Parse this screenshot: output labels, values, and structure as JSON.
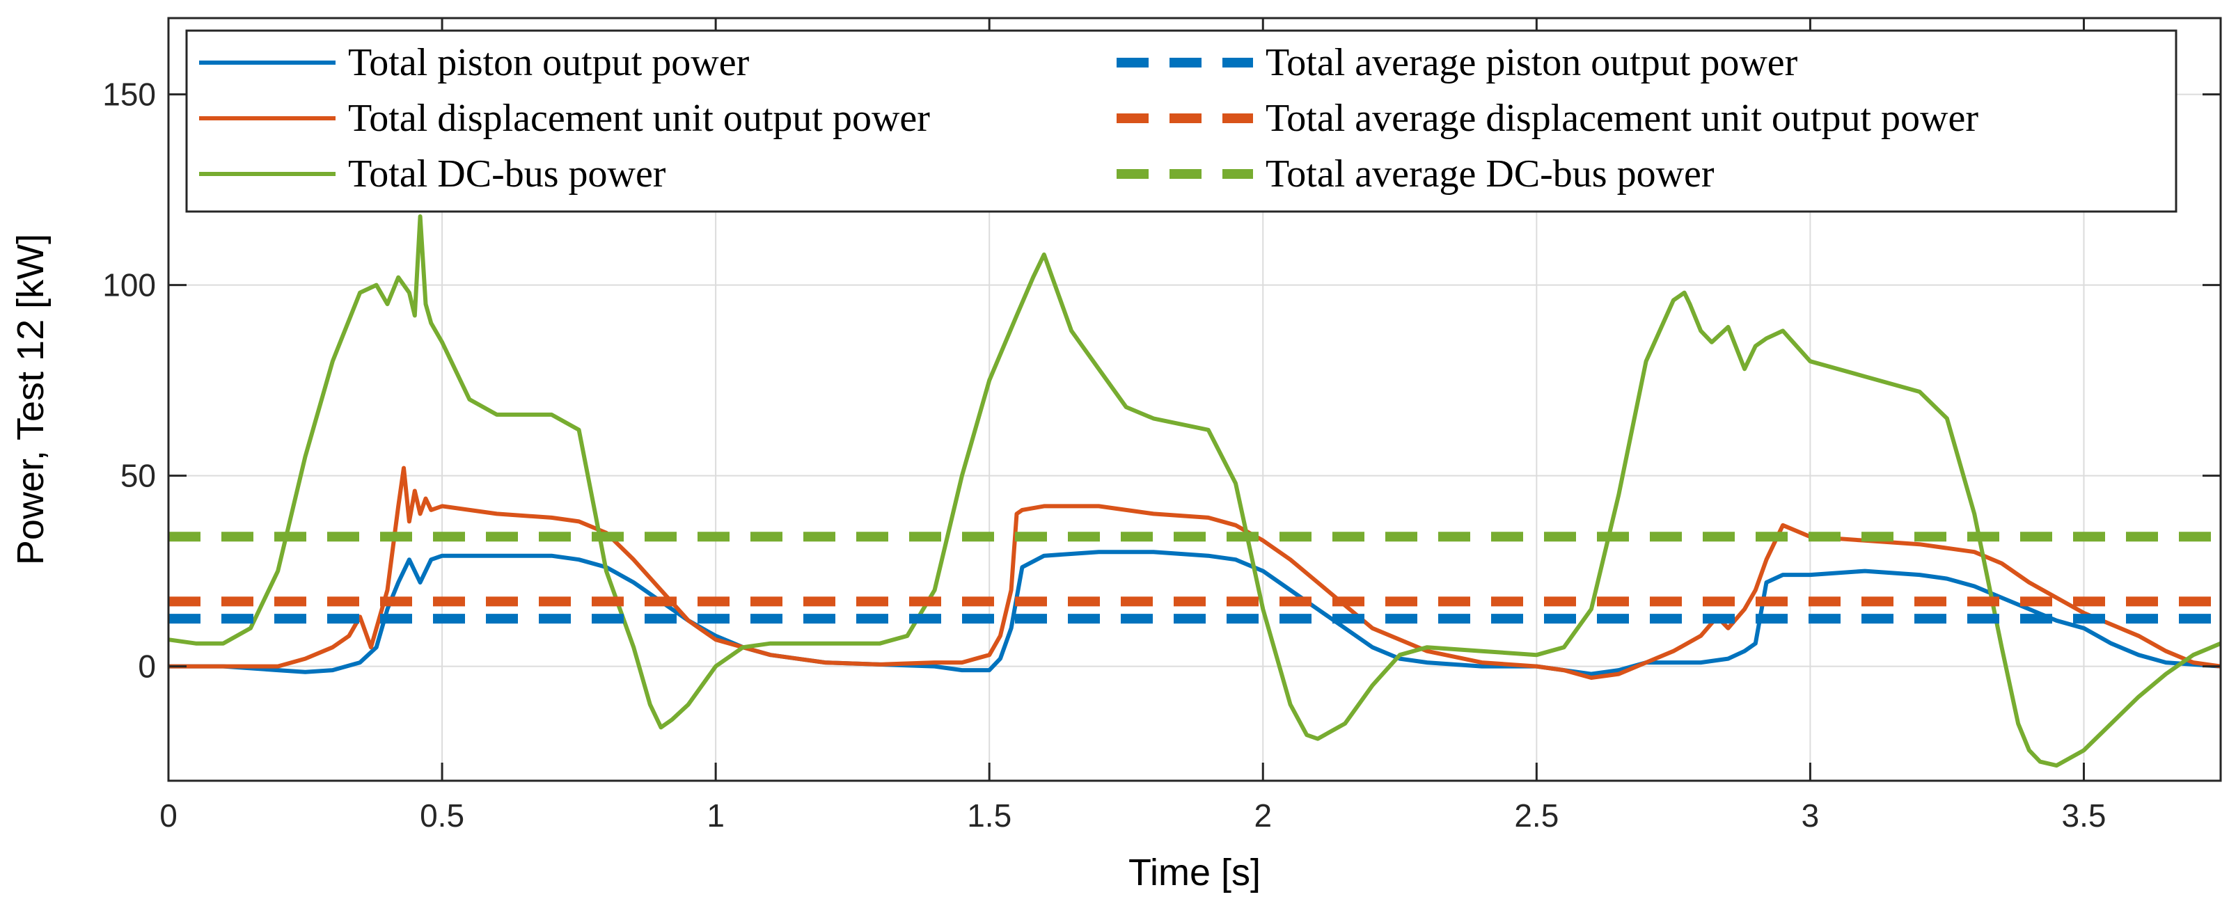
{
  "chart_data": {
    "type": "line",
    "title": "",
    "xlabel": "Time [s]",
    "ylabel": "Power, Test 12 [kW]",
    "xlim": [
      0,
      3.75
    ],
    "ylim": [
      -30,
      170
    ],
    "xticks": [
      0,
      0.5,
      1,
      1.5,
      2,
      2.5,
      3,
      3.5
    ],
    "xtick_labels": [
      "0",
      "0.5",
      "1",
      "1.5",
      "2",
      "2.5",
      "3",
      "3.5"
    ],
    "yticks": [
      0,
      50,
      100,
      150
    ],
    "ytick_labels": [
      "0",
      "50",
      "100",
      "150"
    ],
    "grid": true,
    "legend_position": "top",
    "series": [
      {
        "name": "Total piston output power",
        "style": "solid",
        "color": "#0072BD",
        "x": [
          0,
          0.1,
          0.2,
          0.25,
          0.3,
          0.35,
          0.38,
          0.4,
          0.42,
          0.44,
          0.46,
          0.48,
          0.5,
          0.6,
          0.7,
          0.75,
          0.8,
          0.85,
          0.9,
          0.95,
          1.0,
          1.05,
          1.1,
          1.2,
          1.3,
          1.4,
          1.45,
          1.5,
          1.52,
          1.54,
          1.56,
          1.6,
          1.7,
          1.8,
          1.9,
          1.95,
          2.0,
          2.05,
          2.1,
          2.15,
          2.2,
          2.25,
          2.3,
          2.4,
          2.5,
          2.55,
          2.6,
          2.65,
          2.7,
          2.75,
          2.8,
          2.85,
          2.88,
          2.9,
          2.92,
          2.95,
          3.0,
          3.1,
          3.2,
          3.25,
          3.3,
          3.35,
          3.4,
          3.45,
          3.5,
          3.55,
          3.6,
          3.65,
          3.7,
          3.75
        ],
        "values": [
          0,
          0,
          -1,
          -1.5,
          -1,
          1,
          5,
          15,
          22,
          28,
          22,
          28,
          29,
          29,
          29,
          28,
          26,
          22,
          17,
          12,
          8,
          5,
          3,
          1,
          0.5,
          0,
          -1,
          -1,
          2,
          10,
          26,
          29,
          30,
          30,
          29,
          28,
          25,
          20,
          15,
          10,
          5,
          2,
          1,
          0,
          0,
          -1,
          -2,
          -1,
          1,
          1,
          1,
          2,
          4,
          6,
          22,
          24,
          24,
          25,
          24,
          23,
          21,
          18,
          15,
          12,
          10,
          6,
          3,
          1,
          0.5,
          0
        ]
      },
      {
        "name": "Total displacement unit output power",
        "style": "solid",
        "color": "#D95319",
        "x": [
          0,
          0.1,
          0.2,
          0.25,
          0.3,
          0.33,
          0.35,
          0.37,
          0.4,
          0.42,
          0.43,
          0.44,
          0.45,
          0.46,
          0.47,
          0.48,
          0.5,
          0.6,
          0.7,
          0.75,
          0.8,
          0.85,
          0.9,
          0.95,
          1.0,
          1.1,
          1.2,
          1.3,
          1.4,
          1.45,
          1.5,
          1.52,
          1.54,
          1.55,
          1.56,
          1.6,
          1.7,
          1.8,
          1.9,
          1.95,
          2.0,
          2.05,
          2.1,
          2.15,
          2.2,
          2.3,
          2.4,
          2.5,
          2.55,
          2.6,
          2.65,
          2.7,
          2.75,
          2.8,
          2.83,
          2.85,
          2.88,
          2.9,
          2.92,
          2.95,
          3.0,
          3.1,
          3.2,
          3.25,
          3.3,
          3.35,
          3.4,
          3.5,
          3.6,
          3.65,
          3.7,
          3.75
        ],
        "values": [
          0,
          0,
          0,
          2,
          5,
          8,
          13,
          5,
          20,
          42,
          52,
          38,
          46,
          40,
          44,
          41,
          42,
          40,
          39,
          38,
          35,
          28,
          20,
          12,
          7,
          3,
          1,
          0.5,
          1,
          1,
          3,
          8,
          20,
          40,
          41,
          42,
          42,
          40,
          39,
          37,
          33,
          28,
          22,
          16,
          10,
          4,
          1,
          0,
          -1,
          -3,
          -2,
          1,
          4,
          8,
          13,
          10,
          15,
          20,
          28,
          37,
          34,
          33,
          32,
          31,
          30,
          27,
          22,
          14,
          8,
          4,
          1,
          0
        ]
      },
      {
        "name": "Total DC-bus power",
        "style": "solid",
        "color": "#77AC30",
        "x": [
          0,
          0.05,
          0.1,
          0.15,
          0.2,
          0.25,
          0.3,
          0.35,
          0.38,
          0.4,
          0.42,
          0.44,
          0.45,
          0.46,
          0.47,
          0.48,
          0.5,
          0.55,
          0.6,
          0.7,
          0.75,
          0.78,
          0.8,
          0.85,
          0.88,
          0.9,
          0.92,
          0.95,
          1.0,
          1.05,
          1.1,
          1.2,
          1.3,
          1.35,
          1.4,
          1.45,
          1.5,
          1.55,
          1.58,
          1.6,
          1.62,
          1.65,
          1.7,
          1.75,
          1.8,
          1.9,
          1.95,
          2.0,
          2.05,
          2.08,
          2.1,
          2.15,
          2.2,
          2.25,
          2.3,
          2.4,
          2.5,
          2.55,
          2.6,
          2.65,
          2.7,
          2.75,
          2.77,
          2.78,
          2.8,
          2.82,
          2.85,
          2.88,
          2.9,
          2.92,
          2.95,
          3.0,
          3.1,
          3.2,
          3.25,
          3.3,
          3.35,
          3.38,
          3.4,
          3.42,
          3.45,
          3.5,
          3.55,
          3.6,
          3.65,
          3.7,
          3.75
        ],
        "values": [
          7,
          6,
          6,
          10,
          25,
          55,
          80,
          98,
          100,
          95,
          102,
          98,
          92,
          118,
          95,
          90,
          85,
          70,
          66,
          66,
          62,
          40,
          25,
          5,
          -10,
          -16,
          -14,
          -10,
          0,
          5,
          6,
          6,
          6,
          8,
          20,
          50,
          75,
          92,
          102,
          108,
          100,
          88,
          78,
          68,
          65,
          62,
          48,
          15,
          -10,
          -18,
          -19,
          -15,
          -5,
          3,
          5,
          4,
          3,
          5,
          15,
          45,
          80,
          96,
          98,
          95,
          88,
          85,
          89,
          78,
          84,
          86,
          88,
          80,
          76,
          72,
          65,
          40,
          5,
          -15,
          -22,
          -25,
          -26,
          -22,
          -15,
          -8,
          -2,
          3,
          6
        ]
      },
      {
        "name": "Total average piston output power",
        "style": "dashed",
        "color": "#0072BD",
        "x": [
          0,
          3.75
        ],
        "values": [
          12.5,
          12.5
        ]
      },
      {
        "name": "Total average displacement unit output power",
        "style": "dashed",
        "color": "#D95319",
        "x": [
          0,
          3.75
        ],
        "values": [
          17,
          17
        ]
      },
      {
        "name": "Total average DC-bus power",
        "style": "dashed",
        "color": "#77AC30",
        "x": [
          0,
          3.75
        ],
        "values": [
          34,
          34
        ]
      }
    ]
  }
}
